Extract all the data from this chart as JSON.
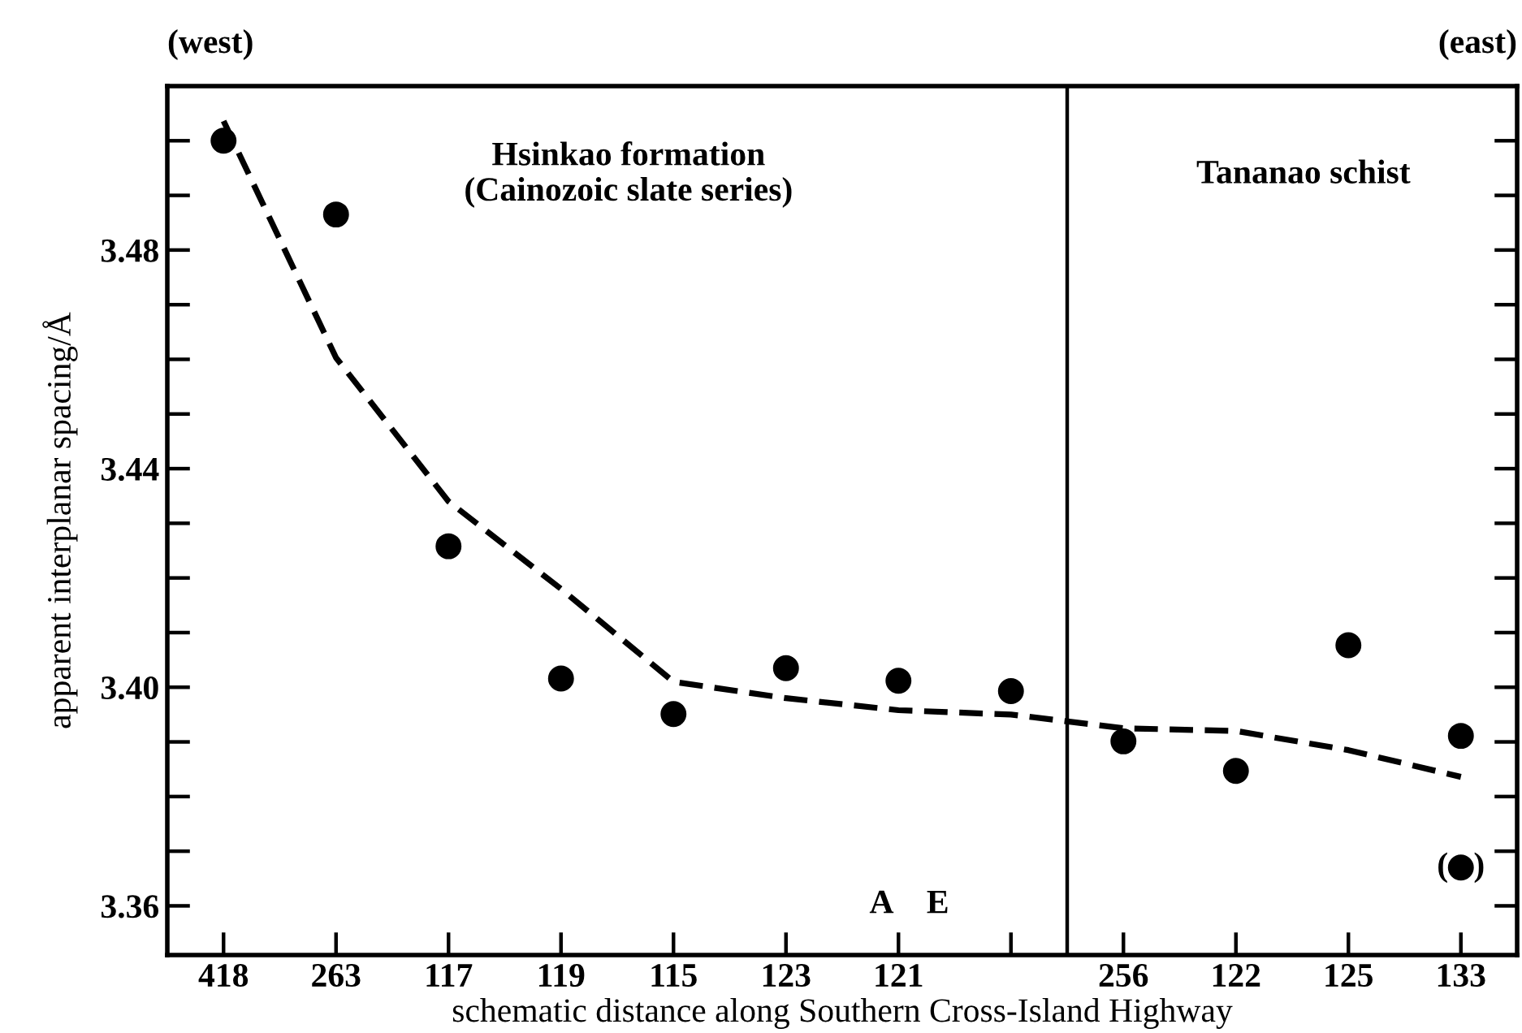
{
  "chart_data": {
    "type": "scatter",
    "xlabel": "schematic distance along Southern Cross-Island Highway",
    "ylabel": "apparent interplanar spacing/Å",
    "annotations": [
      "(west)",
      "(east)",
      "A",
      "E",
      "Hsinkao formation\n(Cainozoic slate series)",
      "Tananao schist",
      {
        "text": "(   )",
        "x": "133",
        "y": 3.367
      }
    ],
    "categories": [
      "418",
      "263",
      "117",
      "119",
      "115",
      "123",
      "121",
      null,
      "256",
      "122",
      "125",
      "133"
    ],
    "series": [
      {
        "color": "#000000",
        "marker": "circle",
        "values": [
          3.5,
          3.4865,
          3.4258,
          3.4016,
          3.3951,
          3.4035,
          3.4012,
          3.3993,
          3.3901,
          3.3847,
          3.4077,
          3.3911
        ]
      },
      {
        "color": "#000000",
        "marker": "circle",
        "values": [
          null,
          null,
          null,
          null,
          null,
          null,
          null,
          null,
          null,
          null,
          null,
          3.367
        ]
      },
      {
        "type": "line",
        "color": "#000000",
        "line_style": "dashed",
        "marker": "none",
        "values": [
          3.5036,
          3.4603,
          3.434,
          3.418,
          3.401,
          3.398,
          3.3958,
          3.395,
          3.3925,
          3.392,
          3.3885,
          3.3836
        ]
      }
    ],
    "ylim": [
      3.351,
      3.51
    ],
    "yticks": [
      {
        "value": 3.36,
        "label": "3.36"
      },
      {
        "value": 3.37,
        "label": null
      },
      {
        "value": 3.38,
        "label": null
      },
      {
        "value": 3.39,
        "label": null
      },
      {
        "value": 3.4,
        "label": "3.40"
      },
      {
        "value": 3.41,
        "label": null
      },
      {
        "value": 3.42,
        "label": null
      },
      {
        "value": 3.43,
        "label": null
      },
      {
        "value": 3.44,
        "label": "3.44"
      },
      {
        "value": 3.45,
        "label": null
      },
      {
        "value": 3.46,
        "label": null
      },
      {
        "value": 3.47,
        "label": null
      },
      {
        "value": 3.48,
        "label": "3.48"
      },
      {
        "value": 3.49,
        "label": null
      },
      {
        "value": 3.5,
        "label": null
      }
    ],
    "grid": false
  }
}
